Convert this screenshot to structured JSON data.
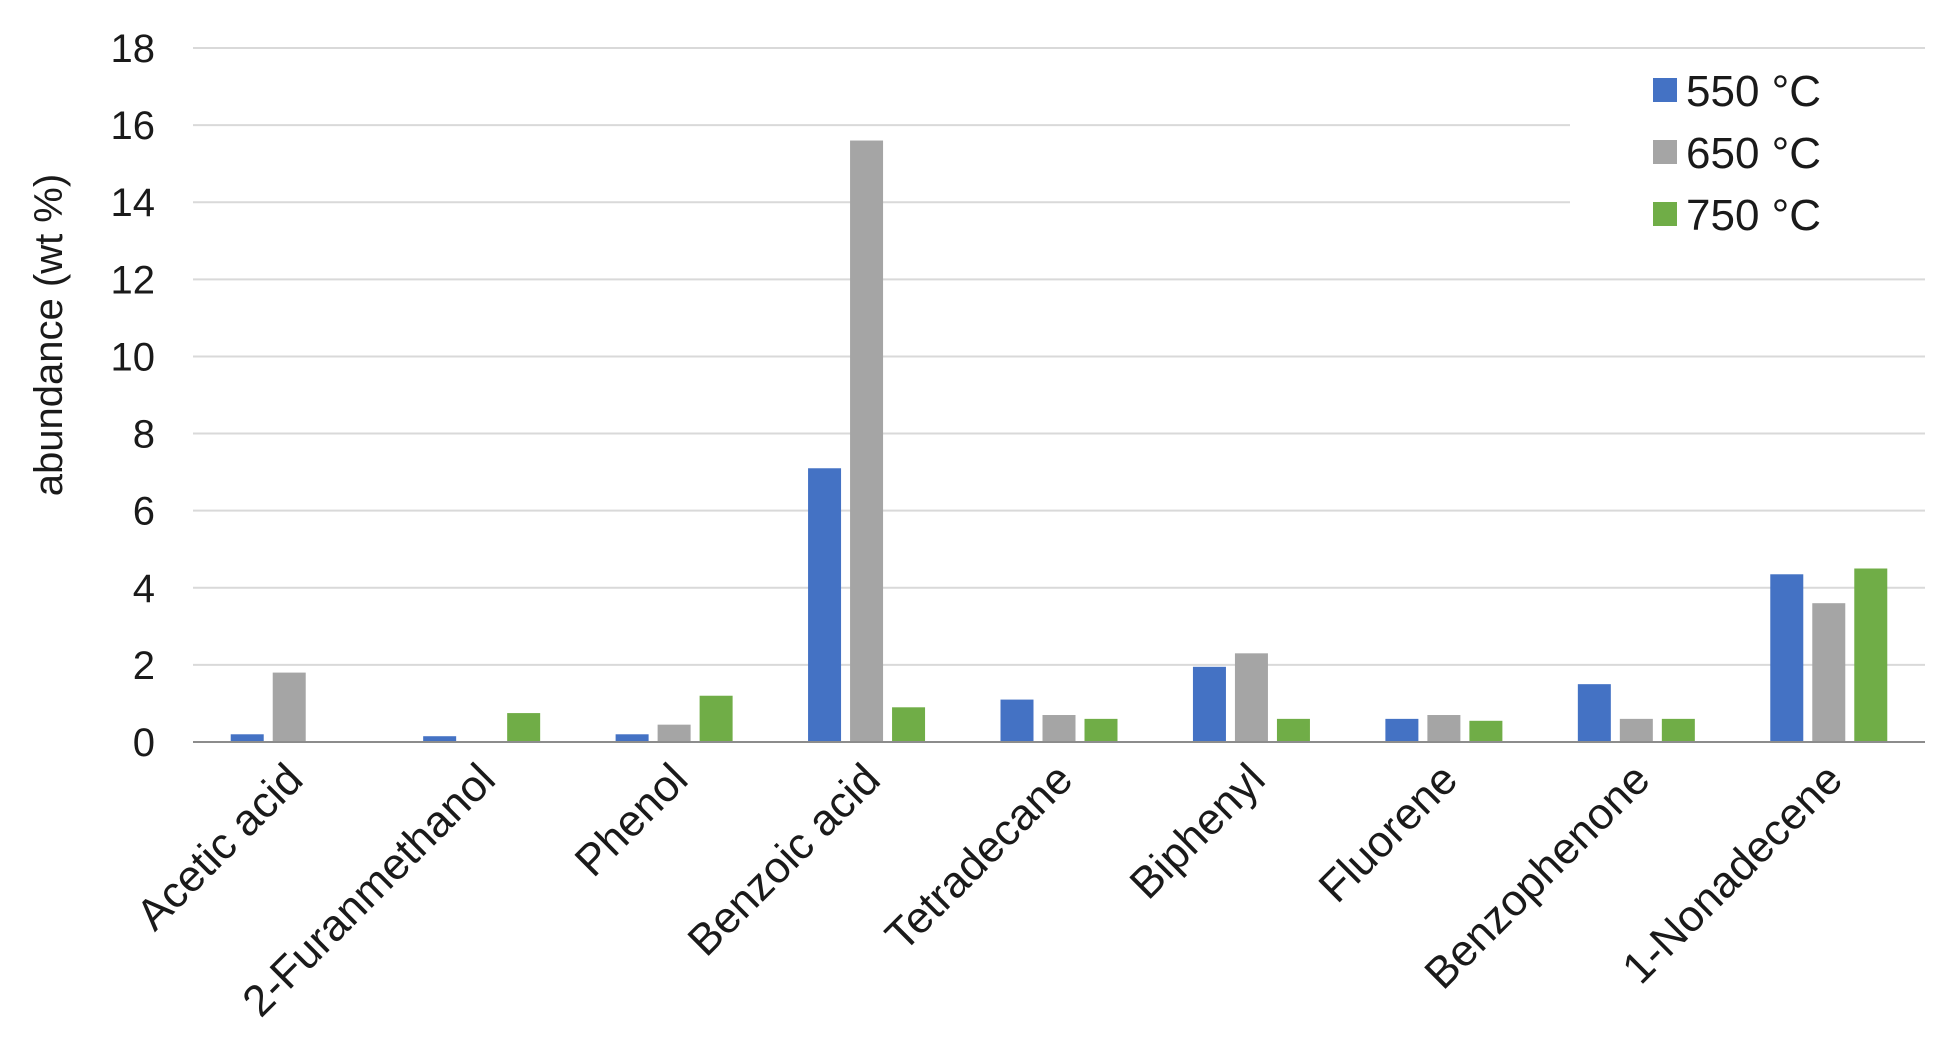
{
  "chart_data": {
    "type": "bar",
    "title": "",
    "xlabel": "",
    "ylabel": "abundance (wt %)",
    "ylim": [
      0,
      18
    ],
    "yticks": [
      "0",
      "2",
      "4",
      "6",
      "8",
      "10",
      "12",
      "14",
      "16",
      "18"
    ],
    "grid": true,
    "legend_position": "top-right",
    "categories": [
      "Acetic acid",
      "2-Furanmethanol",
      "Phenol",
      "Benzoic acid",
      "Tetradecane",
      "Biphenyl",
      "Fluorene",
      "Benzophenone",
      "1-Nonadecene"
    ],
    "series": [
      {
        "name": "550 °C",
        "color": "#4472c4",
        "values": [
          0.2,
          0.15,
          0.2,
          7.1,
          1.1,
          1.95,
          0.6,
          1.5,
          4.35
        ]
      },
      {
        "name": "650 °C",
        "color": "#a5a5a5",
        "values": [
          1.8,
          0,
          0.45,
          15.6,
          0.7,
          2.3,
          0.7,
          0.6,
          3.6
        ]
      },
      {
        "name": "750 °C",
        "color": "#70ad47",
        "values": [
          0,
          0.75,
          1.2,
          0.9,
          0.6,
          0.6,
          0.55,
          0.6,
          4.5
        ]
      }
    ]
  }
}
